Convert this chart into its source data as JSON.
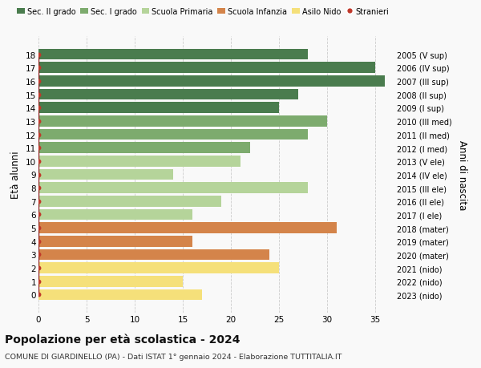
{
  "ages": [
    18,
    17,
    16,
    15,
    14,
    13,
    12,
    11,
    10,
    9,
    8,
    7,
    6,
    5,
    4,
    3,
    2,
    1,
    0
  ],
  "values": [
    28,
    35,
    36,
    27,
    25,
    30,
    28,
    22,
    21,
    14,
    28,
    19,
    16,
    31,
    16,
    24,
    25,
    15,
    17
  ],
  "bar_colors": [
    "#4a7c4e",
    "#4a7c4e",
    "#4a7c4e",
    "#4a7c4e",
    "#4a7c4e",
    "#7dab6e",
    "#7dab6e",
    "#7dab6e",
    "#b5d49a",
    "#b5d49a",
    "#b5d49a",
    "#b5d49a",
    "#b5d49a",
    "#d4844a",
    "#d4844a",
    "#d4844a",
    "#f5e07a",
    "#f5e07a",
    "#f5e07a"
  ],
  "right_labels": [
    "2005 (V sup)",
    "2006 (IV sup)",
    "2007 (III sup)",
    "2008 (II sup)",
    "2009 (I sup)",
    "2010 (III med)",
    "2011 (II med)",
    "2012 (I med)",
    "2013 (V ele)",
    "2014 (IV ele)",
    "2015 (III ele)",
    "2016 (II ele)",
    "2017 (I ele)",
    "2018 (mater)",
    "2019 (mater)",
    "2020 (mater)",
    "2021 (nido)",
    "2022 (nido)",
    "2023 (nido)"
  ],
  "legend_labels": [
    "Sec. II grado",
    "Sec. I grado",
    "Scuola Primaria",
    "Scuola Infanzia",
    "Asilo Nido",
    "Stranieri"
  ],
  "legend_colors": [
    "#4a7c4e",
    "#7dab6e",
    "#b5d49a",
    "#d4844a",
    "#f5e07a",
    "#c0392b"
  ],
  "ylabel": "Età alunni",
  "right_ylabel": "Anni di nascita",
  "title": "Popolazione per età scolastica - 2024",
  "subtitle": "COMUNE DI GIARDINELLO (PA) - Dati ISTAT 1° gennaio 2024 - Elaborazione TUTTITALIA.IT",
  "xlim": [
    0,
    37
  ],
  "xticks": [
    0,
    5,
    10,
    15,
    20,
    25,
    30,
    35
  ],
  "background_color": "#f9f9f9",
  "stranieri_color": "#c0392b",
  "stranieri_line_color": "#8b2020"
}
